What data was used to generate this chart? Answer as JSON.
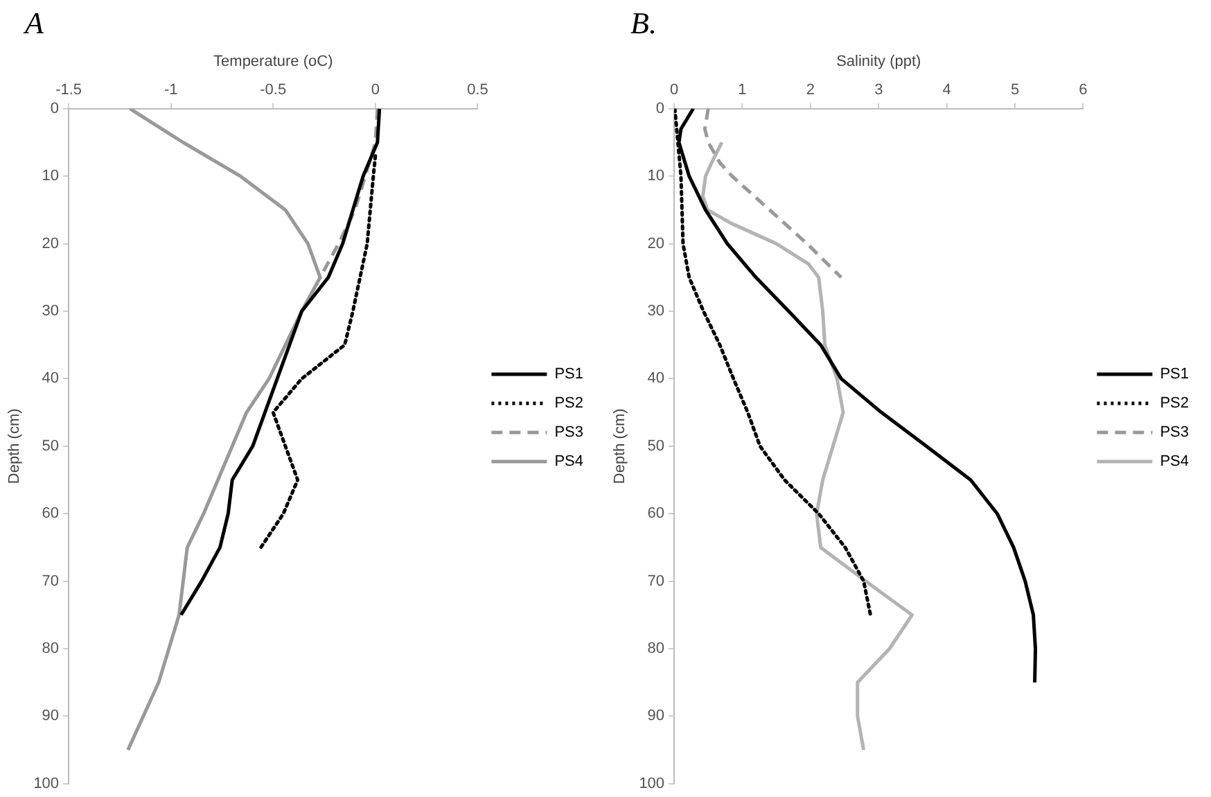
{
  "chart_data": [
    {
      "type": "line",
      "title": "A",
      "xlabel": "Temperature (oC)",
      "ylabel": "Depth (cm)",
      "xlim": [
        -1.5,
        0.5
      ],
      "xticks": [
        -1.5,
        -1,
        -0.5,
        0,
        0.5
      ],
      "ylim": [
        100,
        0
      ],
      "yticks": [
        0,
        10,
        20,
        30,
        40,
        50,
        60,
        70,
        80,
        90,
        100
      ],
      "grid": false,
      "legend": "right",
      "marker": "none",
      "series": [
        {
          "name": "PS1",
          "color": "#000000",
          "line_style": "solid",
          "x": [
            0.02,
            0.01,
            -0.06,
            -0.16,
            -0.23,
            -0.36,
            -0.48,
            -0.6,
            -0.7,
            -0.72,
            -0.76,
            -0.85,
            -0.95
          ],
          "values": [
            0,
            5,
            10,
            20,
            25,
            30,
            40,
            50,
            55,
            60,
            65,
            70,
            75
          ]
        },
        {
          "name": "PS2",
          "color": "#000000",
          "line_style": "dotted",
          "x": [
            0,
            -0.01,
            -0.04,
            -0.11,
            -0.15,
            -0.36,
            -0.5,
            -0.44,
            -0.38,
            -0.45,
            -0.56
          ],
          "values": [
            7,
            10,
            20,
            30,
            35,
            40,
            45,
            50,
            55,
            60,
            65
          ]
        },
        {
          "name": "PS3",
          "color": "#999999",
          "line_style": "dashed",
          "x": [
            0.01,
            0,
            -0.05,
            -0.1,
            -0.18,
            -0.27
          ],
          "values": [
            0,
            5,
            10,
            15,
            20,
            25
          ]
        },
        {
          "name": "PS4",
          "color": "#999999",
          "line_style": "solid",
          "x": [
            -1.2,
            -0.94,
            -0.66,
            -0.44,
            -0.33,
            -0.27,
            -0.36,
            -0.52,
            -0.63,
            -0.7,
            -0.84,
            -0.92,
            -0.94,
            -0.96,
            -1.06,
            -1.21
          ],
          "values": [
            0,
            5,
            10,
            15,
            20,
            25,
            30,
            40,
            45,
            50,
            60,
            65,
            70,
            75,
            85,
            95
          ]
        }
      ]
    },
    {
      "type": "line",
      "title": "B.",
      "xlabel": "Salinity (ppt)",
      "ylabel": "Depth (cm)",
      "xlim": [
        0,
        6
      ],
      "xticks": [
        0,
        1,
        2,
        3,
        4,
        5,
        6
      ],
      "ylim": [
        100,
        0
      ],
      "yticks": [
        0,
        10,
        20,
        30,
        40,
        50,
        60,
        70,
        80,
        90,
        100
      ],
      "grid": false,
      "legend": "right",
      "marker": "none",
      "series": [
        {
          "name": "PS1",
          "color": "#000000",
          "line_style": "solid",
          "x": [
            0.28,
            0.1,
            0.07,
            0.22,
            0.46,
            0.78,
            1.2,
            1.68,
            2.15,
            2.45,
            3.04,
            3.7,
            4.35,
            4.74,
            4.98,
            5.15,
            5.27,
            5.3,
            5.29
          ],
          "values": [
            0,
            3,
            5,
            10,
            15,
            20,
            25,
            30,
            35,
            40,
            45,
            50,
            55,
            60,
            65,
            70,
            75,
            80,
            85
          ]
        },
        {
          "name": "PS2",
          "color": "#000000",
          "line_style": "dotted",
          "x": [
            0.01,
            0.1,
            0.13,
            0.22,
            0.43,
            0.67,
            0.87,
            1.08,
            1.26,
            1.62,
            2.12,
            2.51,
            2.78,
            2.88
          ],
          "values": [
            0,
            10,
            20,
            25,
            30,
            35,
            40,
            45,
            50,
            55,
            60,
            65,
            70,
            75
          ]
        },
        {
          "name": "PS3",
          "color": "#999999",
          "line_style": "dashed",
          "x": [
            0.5,
            0.45,
            0.5,
            0.67,
            0.85,
            1.4,
            1.95,
            2.45
          ],
          "values": [
            0,
            3,
            5,
            8,
            10,
            15,
            20,
            25
          ]
        },
        {
          "name": "PS4",
          "color": "#b3b3b3",
          "line_style": "solid",
          "x": [
            0.7,
            0.55,
            0.46,
            0.42,
            0.49,
            0.84,
            1.5,
            1.97,
            2.12,
            2.18,
            2.21,
            2.39,
            2.48,
            2.33,
            2.18,
            2.09,
            2.15,
            2.81,
            3.49,
            3.16,
            2.69,
            2.69,
            2.78
          ],
          "values": [
            5,
            8,
            10,
            13,
            15,
            17,
            20,
            23,
            25,
            30,
            35,
            40,
            45,
            50,
            55,
            60,
            65,
            70,
            75,
            80,
            85,
            90,
            95
          ]
        }
      ]
    }
  ]
}
